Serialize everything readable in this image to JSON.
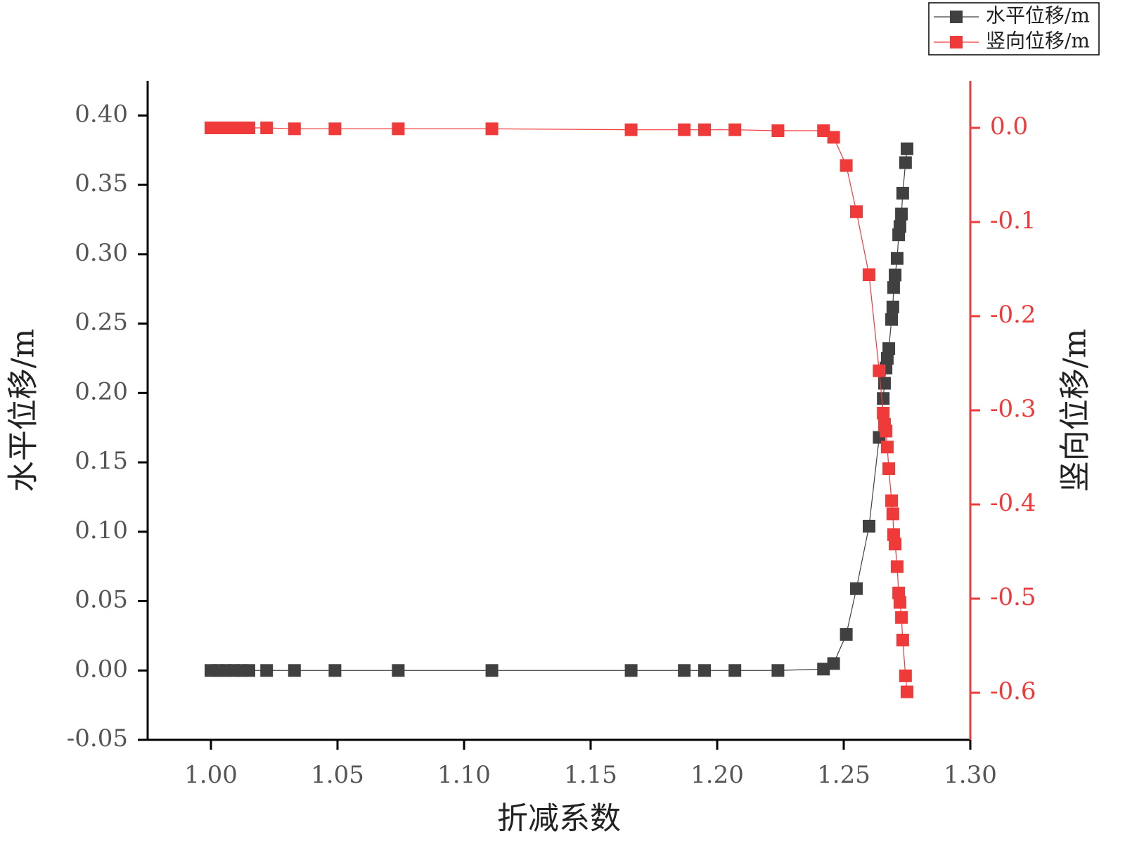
{
  "chart_data": {
    "type": "line",
    "x_label": "折减系数",
    "y_label": "水平位移/m",
    "y2_label": "竖向位移/m",
    "x": [
      1.0,
      1.003,
      1.006,
      1.009,
      1.012,
      1.015,
      1.022,
      1.033,
      1.049,
      1.074,
      1.111,
      1.166,
      1.187,
      1.195,
      1.207,
      1.224,
      1.242,
      1.246,
      1.251,
      1.255,
      1.26,
      1.264,
      1.2656,
      1.2661,
      1.2667,
      1.2672,
      1.2678,
      1.2689,
      1.2694,
      1.2697,
      1.2703,
      1.2711,
      1.2717,
      1.2722,
      1.2728,
      1.2733,
      1.2744,
      1.275
    ],
    "series": [
      {
        "name": "水平位移/m",
        "color": "#404040",
        "axis": "y",
        "values": [
          0,
          0,
          0,
          0,
          0,
          0,
          0,
          0,
          0,
          0,
          0,
          0,
          0,
          0,
          0,
          0,
          0.001,
          0.005,
          0.026,
          0.059,
          0.104,
          0.168,
          0.196,
          0.207,
          0.218,
          0.225,
          0.232,
          0.253,
          0.262,
          0.276,
          0.285,
          0.297,
          0.314,
          0.32,
          0.329,
          0.344,
          0.366,
          0.376
        ]
      },
      {
        "name": "竖向位移/m",
        "color": "#f03a3a",
        "axis": "y2",
        "values": [
          0,
          0,
          0,
          0,
          0,
          0,
          0,
          -0.001,
          -0.001,
          -0.001,
          -0.001,
          -0.002,
          -0.002,
          -0.002,
          -0.002,
          -0.003,
          -0.003,
          -0.01,
          -0.04,
          -0.089,
          -0.156,
          -0.258,
          -0.303,
          -0.315,
          -0.322,
          -0.339,
          -0.362,
          -0.396,
          -0.41,
          -0.432,
          -0.442,
          -0.466,
          -0.494,
          -0.504,
          -0.52,
          -0.544,
          -0.582,
          -0.599
        ]
      }
    ],
    "xlim": [
      0.975,
      1.3
    ],
    "xticks": [
      {
        "value": 1.0,
        "label": "1.00"
      },
      1.05,
      {
        "value": 1.1,
        "label": "1.10"
      },
      1.15,
      {
        "value": 1.2,
        "label": "1.20"
      },
      1.25,
      {
        "value": 1.3,
        "label": "1.30"
      }
    ],
    "ylim": [
      -0.05,
      0.425
    ],
    "yticks": [
      -0.05,
      {
        "value": 0,
        "label": "0.00"
      },
      0.05,
      {
        "value": 0.1,
        "label": "0.10"
      },
      0.15,
      {
        "value": 0.2,
        "label": "0.20"
      },
      0.25,
      {
        "value": 0.3,
        "label": "0.30"
      },
      0.35,
      {
        "value": 0.4,
        "label": "0.40"
      }
    ],
    "y2lim": [
      -0.65,
      0.05
    ],
    "y2ticks": [
      -0.6,
      -0.5,
      -0.4,
      -0.3,
      -0.2,
      -0.1,
      {
        "value": 0,
        "label": "0.0"
      }
    ],
    "legend": "top-right"
  }
}
